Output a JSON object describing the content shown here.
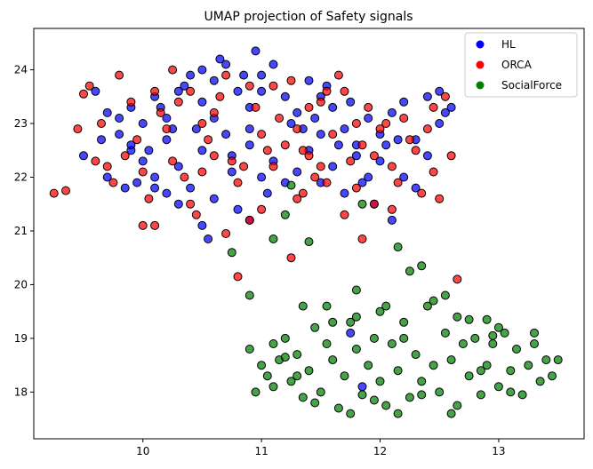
{
  "chart_data": {
    "type": "scatter",
    "title": "UMAP projection of Safety signals",
    "xlabel": "",
    "ylabel": "",
    "xlim": [
      9.08,
      13.72
    ],
    "ylim": [
      17.13,
      24.77
    ],
    "xticks": [
      10,
      11,
      12,
      13
    ],
    "yticks": [
      18,
      19,
      20,
      21,
      22,
      23,
      24
    ],
    "grid": false,
    "legend_position": "top-right",
    "series": [
      {
        "name": "HL",
        "color": "#0000ff",
        "points": [
          [
            9.5,
            22.4
          ],
          [
            9.6,
            23.6
          ],
          [
            9.7,
            23.2
          ],
          [
            9.8,
            22.8
          ],
          [
            9.9,
            22.5
          ],
          [
            9.7,
            22.0
          ],
          [
            9.85,
            21.8
          ],
          [
            10.0,
            22.3
          ],
          [
            10.1,
            22.0
          ],
          [
            10.2,
            21.7
          ],
          [
            10.0,
            23.0
          ],
          [
            10.15,
            23.3
          ],
          [
            10.3,
            23.6
          ],
          [
            10.4,
            23.9
          ],
          [
            10.5,
            23.4
          ],
          [
            10.6,
            23.8
          ],
          [
            10.7,
            24.1
          ],
          [
            10.8,
            23.6
          ],
          [
            10.9,
            23.3
          ],
          [
            11.0,
            23.9
          ],
          [
            11.1,
            24.1
          ],
          [
            10.95,
            24.35
          ],
          [
            11.2,
            23.5
          ],
          [
            11.3,
            23.2
          ],
          [
            11.4,
            23.8
          ],
          [
            11.5,
            23.5
          ],
          [
            11.6,
            23.3
          ],
          [
            11.7,
            22.9
          ],
          [
            11.8,
            22.6
          ],
          [
            11.9,
            23.1
          ],
          [
            12.0,
            22.8
          ],
          [
            12.1,
            23.2
          ],
          [
            12.2,
            23.4
          ],
          [
            12.3,
            22.7
          ],
          [
            12.4,
            23.5
          ],
          [
            12.5,
            23.6
          ],
          [
            12.6,
            23.3
          ],
          [
            12.5,
            23.0
          ],
          [
            12.0,
            22.3
          ],
          [
            11.9,
            22.0
          ],
          [
            11.7,
            21.7
          ],
          [
            11.5,
            21.9
          ],
          [
            11.3,
            22.1
          ],
          [
            11.1,
            22.3
          ],
          [
            10.9,
            22.6
          ],
          [
            10.7,
            22.8
          ],
          [
            10.5,
            22.5
          ],
          [
            10.3,
            22.2
          ],
          [
            10.4,
            21.8
          ],
          [
            10.6,
            21.6
          ],
          [
            10.8,
            21.4
          ],
          [
            10.9,
            21.2
          ],
          [
            10.5,
            21.1
          ],
          [
            10.55,
            20.85
          ],
          [
            10.3,
            21.5
          ],
          [
            10.1,
            21.8
          ],
          [
            9.9,
            22.6
          ],
          [
            10.2,
            22.7
          ],
          [
            10.45,
            22.9
          ],
          [
            10.6,
            23.1
          ],
          [
            10.75,
            22.4
          ],
          [
            11.0,
            22.0
          ],
          [
            11.2,
            21.9
          ],
          [
            11.4,
            22.5
          ],
          [
            11.6,
            22.2
          ],
          [
            11.8,
            22.4
          ],
          [
            12.05,
            22.6
          ],
          [
            12.2,
            22.0
          ],
          [
            12.3,
            21.8
          ],
          [
            12.1,
            21.2
          ],
          [
            11.95,
            21.5
          ],
          [
            11.85,
            21.9
          ],
          [
            11.5,
            22.8
          ],
          [
            11.35,
            22.9
          ],
          [
            11.25,
            23.0
          ],
          [
            10.85,
            23.9
          ],
          [
            10.65,
            24.2
          ],
          [
            10.5,
            24.0
          ],
          [
            10.35,
            23.7
          ],
          [
            10.25,
            22.9
          ],
          [
            10.05,
            22.5
          ],
          [
            9.95,
            21.9
          ],
          [
            9.65,
            22.7
          ],
          [
            9.8,
            23.1
          ],
          [
            10.1,
            23.5
          ],
          [
            10.75,
            22.1
          ],
          [
            11.05,
            21.7
          ],
          [
            11.65,
            22.6
          ],
          [
            11.75,
            23.4
          ],
          [
            12.4,
            22.4
          ],
          [
            12.55,
            23.2
          ],
          [
            11.85,
            18.1
          ],
          [
            11.75,
            19.1
          ],
          [
            11.0,
            23.6
          ],
          [
            10.9,
            22.9
          ],
          [
            11.55,
            23.7
          ],
          [
            11.45,
            23.1
          ],
          [
            12.15,
            22.7
          ],
          [
            9.9,
            23.3
          ],
          [
            10.2,
            23.1
          ]
        ]
      },
      {
        "name": "ORCA",
        "color": "#ff0000",
        "points": [
          [
            9.25,
            21.7
          ],
          [
            9.35,
            21.75
          ],
          [
            9.45,
            22.9
          ],
          [
            9.5,
            23.55
          ],
          [
            9.55,
            23.7
          ],
          [
            9.65,
            23.0
          ],
          [
            9.7,
            22.2
          ],
          [
            9.75,
            21.9
          ],
          [
            9.8,
            23.9
          ],
          [
            9.9,
            23.4
          ],
          [
            9.95,
            22.7
          ],
          [
            10.0,
            22.1
          ],
          [
            10.05,
            21.6
          ],
          [
            10.1,
            23.6
          ],
          [
            10.15,
            23.2
          ],
          [
            10.2,
            22.9
          ],
          [
            10.25,
            24.0
          ],
          [
            10.3,
            23.4
          ],
          [
            10.35,
            22.0
          ],
          [
            10.4,
            21.5
          ],
          [
            10.45,
            21.3
          ],
          [
            10.5,
            23.0
          ],
          [
            10.55,
            22.7
          ],
          [
            10.6,
            22.4
          ],
          [
            10.65,
            23.5
          ],
          [
            10.7,
            23.9
          ],
          [
            10.75,
            22.3
          ],
          [
            10.8,
            21.9
          ],
          [
            10.85,
            22.2
          ],
          [
            10.9,
            23.7
          ],
          [
            10.95,
            23.3
          ],
          [
            11.0,
            22.8
          ],
          [
            11.05,
            22.5
          ],
          [
            11.1,
            22.2
          ],
          [
            11.15,
            23.1
          ],
          [
            11.2,
            22.6
          ],
          [
            11.25,
            23.8
          ],
          [
            11.3,
            22.9
          ],
          [
            11.35,
            21.7
          ],
          [
            11.4,
            22.4
          ],
          [
            11.45,
            22.0
          ],
          [
            11.5,
            23.4
          ],
          [
            11.55,
            23.6
          ],
          [
            11.6,
            22.8
          ],
          [
            11.65,
            23.9
          ],
          [
            11.7,
            23.6
          ],
          [
            11.75,
            22.3
          ],
          [
            11.8,
            21.8
          ],
          [
            11.85,
            22.6
          ],
          [
            11.9,
            23.3
          ],
          [
            11.95,
            21.5
          ],
          [
            12.0,
            22.9
          ],
          [
            12.05,
            23.0
          ],
          [
            12.1,
            22.2
          ],
          [
            12.15,
            21.9
          ],
          [
            12.2,
            23.1
          ],
          [
            12.3,
            22.5
          ],
          [
            12.35,
            21.7
          ],
          [
            12.4,
            22.9
          ],
          [
            12.45,
            22.1
          ],
          [
            12.5,
            21.6
          ],
          [
            12.55,
            23.5
          ],
          [
            12.6,
            22.4
          ],
          [
            12.65,
            20.1
          ],
          [
            11.85,
            20.85
          ],
          [
            11.7,
            21.3
          ],
          [
            11.3,
            21.6
          ],
          [
            11.0,
            21.4
          ],
          [
            10.9,
            21.2
          ],
          [
            10.1,
            21.1
          ],
          [
            10.0,
            21.1
          ],
          [
            10.7,
            20.95
          ],
          [
            11.35,
            22.5
          ],
          [
            11.55,
            21.9
          ],
          [
            10.6,
            23.2
          ],
          [
            10.4,
            23.6
          ],
          [
            10.25,
            22.3
          ],
          [
            11.1,
            23.7
          ],
          [
            11.4,
            23.3
          ],
          [
            11.8,
            23.0
          ],
          [
            12.25,
            22.7
          ],
          [
            12.45,
            23.3
          ],
          [
            9.6,
            22.3
          ],
          [
            9.85,
            22.4
          ],
          [
            10.5,
            22.1
          ],
          [
            11.95,
            22.4
          ],
          [
            12.1,
            21.4
          ],
          [
            11.25,
            20.5
          ],
          [
            10.8,
            20.15
          ],
          [
            11.5,
            22.2
          ]
        ]
      },
      {
        "name": "SocialForce",
        "color": "#008000",
        "points": [
          [
            10.75,
            20.6
          ],
          [
            10.9,
            19.8
          ],
          [
            11.1,
            20.85
          ],
          [
            11.2,
            21.3
          ],
          [
            11.25,
            21.85
          ],
          [
            11.4,
            20.8
          ],
          [
            11.85,
            21.5
          ],
          [
            12.15,
            20.7
          ],
          [
            12.25,
            20.25
          ],
          [
            12.35,
            20.35
          ],
          [
            11.8,
            19.9
          ],
          [
            12.45,
            19.7
          ],
          [
            12.55,
            19.8
          ],
          [
            12.75,
            19.35
          ],
          [
            12.9,
            19.35
          ],
          [
            10.9,
            18.8
          ],
          [
            11.0,
            18.5
          ],
          [
            11.05,
            18.3
          ],
          [
            10.95,
            18.0
          ],
          [
            11.1,
            18.9
          ],
          [
            11.15,
            18.6
          ],
          [
            11.2,
            19.0
          ],
          [
            11.25,
            18.2
          ],
          [
            11.3,
            18.7
          ],
          [
            11.35,
            17.9
          ],
          [
            11.4,
            18.4
          ],
          [
            11.45,
            19.2
          ],
          [
            11.5,
            18.0
          ],
          [
            11.55,
            19.6
          ],
          [
            11.6,
            18.6
          ],
          [
            11.65,
            17.7
          ],
          [
            11.7,
            18.3
          ],
          [
            11.75,
            19.3
          ],
          [
            11.8,
            18.8
          ],
          [
            11.85,
            17.95
          ],
          [
            11.9,
            18.5
          ],
          [
            11.95,
            19.0
          ],
          [
            12.0,
            18.2
          ],
          [
            12.05,
            17.75
          ],
          [
            12.1,
            18.9
          ],
          [
            12.15,
            18.4
          ],
          [
            12.2,
            19.3
          ],
          [
            12.25,
            17.9
          ],
          [
            12.3,
            18.7
          ],
          [
            12.35,
            18.2
          ],
          [
            12.4,
            19.6
          ],
          [
            12.45,
            18.5
          ],
          [
            12.5,
            18.0
          ],
          [
            12.55,
            19.1
          ],
          [
            12.6,
            18.6
          ],
          [
            12.65,
            17.75
          ],
          [
            12.7,
            18.9
          ],
          [
            12.75,
            18.3
          ],
          [
            12.8,
            19.0
          ],
          [
            12.85,
            17.95
          ],
          [
            12.9,
            18.5
          ],
          [
            12.95,
            18.9
          ],
          [
            13.0,
            18.1
          ],
          [
            13.05,
            19.1
          ],
          [
            13.1,
            18.4
          ],
          [
            13.15,
            18.8
          ],
          [
            13.2,
            17.95
          ],
          [
            13.25,
            18.5
          ],
          [
            13.3,
            18.9
          ],
          [
            13.35,
            18.2
          ],
          [
            13.4,
            18.6
          ],
          [
            13.45,
            18.3
          ],
          [
            13.5,
            18.6
          ],
          [
            13.1,
            18.0
          ],
          [
            12.95,
            19.05
          ],
          [
            11.35,
            19.6
          ],
          [
            11.6,
            19.3
          ],
          [
            11.8,
            19.4
          ],
          [
            12.0,
            19.5
          ],
          [
            12.2,
            19.0
          ],
          [
            11.55,
            18.9
          ],
          [
            11.3,
            18.3
          ],
          [
            11.1,
            18.1
          ],
          [
            11.45,
            17.8
          ],
          [
            12.15,
            17.6
          ],
          [
            12.6,
            17.6
          ],
          [
            12.05,
            19.6
          ],
          [
            12.65,
            19.4
          ],
          [
            13.3,
            19.1
          ],
          [
            13.0,
            19.2
          ],
          [
            11.95,
            17.85
          ],
          [
            11.2,
            18.65
          ],
          [
            11.75,
            17.6
          ],
          [
            12.35,
            17.95
          ],
          [
            12.85,
            18.4
          ]
        ]
      }
    ]
  }
}
